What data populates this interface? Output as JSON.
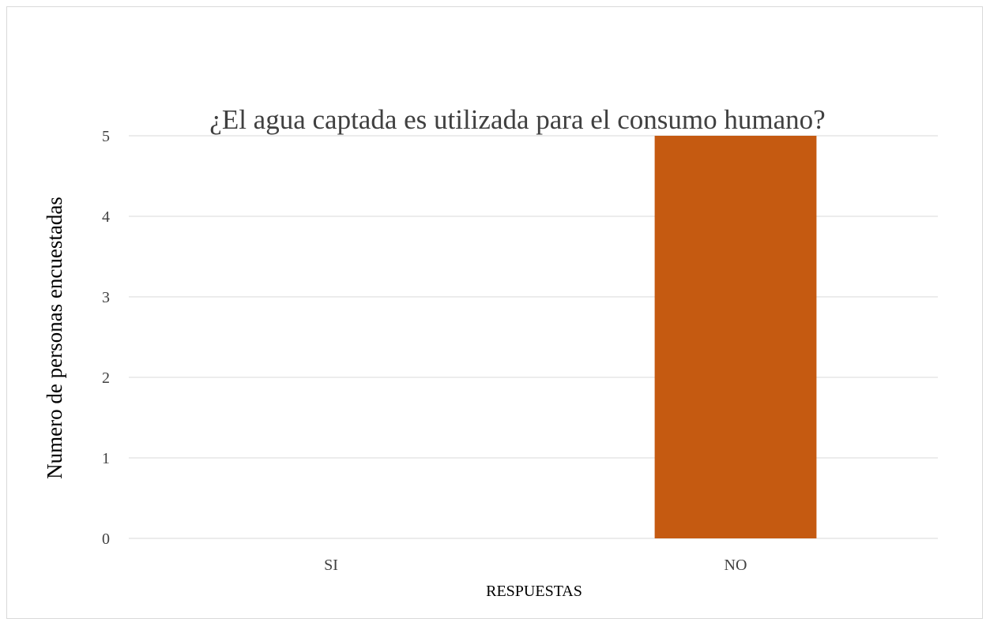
{
  "chart_data": {
    "type": "bar",
    "title": "¿El agua captada es utilizada para el consumo humano?",
    "xlabel": "RESPUESTAS",
    "ylabel": "Numero de personas encuestadas",
    "categories": [
      "SI",
      "NO"
    ],
    "values": [
      0,
      5
    ],
    "ylim": [
      0,
      5
    ],
    "yticks": [
      "0",
      "1",
      "2",
      "3",
      "4",
      "5"
    ],
    "grid": true,
    "legend": "none",
    "bar_color": "#C55A11"
  }
}
